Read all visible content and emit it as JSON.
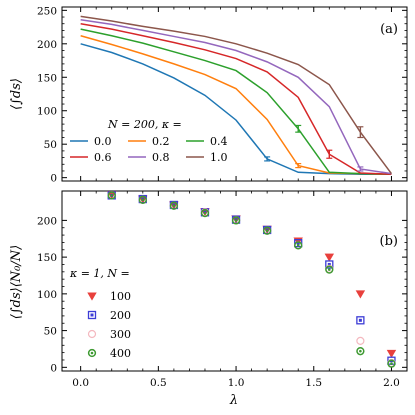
{
  "chart_data": [
    {
      "type": "line",
      "panel_label": "(a)",
      "ylabel": "⟨∫ds⟩",
      "xlabel": "",
      "xlim": [
        -0.12,
        2.1
      ],
      "ylim": [
        -5,
        255
      ],
      "yticks": [
        0,
        50,
        100,
        150,
        200,
        250
      ],
      "xticks": [
        0.0,
        0.5,
        1.0,
        1.5,
        2.0
      ],
      "show_xticklabels": false,
      "legend_title": "N = 200, κ =",
      "legend_position": "lower-left",
      "x": [
        0.0,
        0.2,
        0.4,
        0.6,
        0.8,
        1.0,
        1.2,
        1.4,
        1.6,
        1.8,
        2.0
      ],
      "series": [
        {
          "name": "0.0",
          "color": "#1f77b4",
          "values": [
            200,
            187,
            170,
            149,
            123,
            86,
            28,
            8,
            6,
            5,
            5
          ],
          "error_at": [
            1.2
          ],
          "error": [
            3
          ]
        },
        {
          "name": "0.2",
          "color": "#ff7f0e",
          "values": [
            212,
            199,
            185,
            170,
            154,
            133,
            87,
            18,
            7,
            6,
            5
          ],
          "error_at": [
            1.4
          ],
          "error": [
            3
          ]
        },
        {
          "name": "0.4",
          "color": "#2ca02c",
          "values": [
            222,
            212,
            201,
            188,
            175,
            160,
            127,
            73,
            8,
            6,
            5
          ],
          "error_at": [
            1.4
          ],
          "error": [
            5
          ]
        },
        {
          "name": "0.6",
          "color": "#d62728",
          "values": [
            230,
            222,
            212,
            202,
            191,
            178,
            158,
            120,
            35,
            7,
            5
          ],
          "error_at": [
            1.6
          ],
          "error": [
            6
          ]
        },
        {
          "name": "0.8",
          "color": "#9467bd",
          "values": [
            236,
            229,
            220,
            211,
            202,
            190,
            173,
            150,
            106,
            13,
            6
          ],
          "error_at": [
            1.8
          ],
          "error": [
            3
          ]
        },
        {
          "name": "1.0",
          "color": "#8c564b",
          "values": [
            241,
            234,
            226,
            219,
            211,
            200,
            186,
            169,
            139,
            68,
            6
          ],
          "error_at": [
            1.8
          ],
          "error": [
            8
          ]
        }
      ]
    },
    {
      "type": "scatter",
      "panel_label": "(b)",
      "ylabel": "⟨∫ds⟩⟨N₀/N⟩",
      "xlabel": "λ",
      "xlim": [
        -0.12,
        2.1
      ],
      "ylim": [
        -5,
        240
      ],
      "yticks": [
        0,
        50,
        100,
        150,
        200
      ],
      "xticks": [
        0.0,
        0.5,
        1.0,
        1.5,
        2.0
      ],
      "xticklabels": [
        "0.0",
        "0.5",
        "1.0",
        "1.5",
        "2.0"
      ],
      "legend_title": "κ = 1, N =",
      "legend_position": "lower-left",
      "x": [
        0.2,
        0.4,
        0.6,
        0.8,
        1.0,
        1.2,
        1.4,
        1.6,
        1.8,
        2.0
      ],
      "series": [
        {
          "name": "100",
          "marker": "triangle-down",
          "color": "#e8403c",
          "values": [
            235,
            229,
            221,
            212,
            202,
            188,
            172,
            150,
            100,
            19
          ]
        },
        {
          "name": "200",
          "marker": "square",
          "color": "#3d3dd6",
          "values": [
            234,
            229,
            221,
            211,
            201,
            187,
            169,
            140,
            64,
            9
          ]
        },
        {
          "name": "300",
          "marker": "circle-open",
          "color": "#f4b8bf",
          "values": [
            234,
            228,
            220,
            211,
            200,
            186,
            166,
            134,
            36,
            6
          ]
        },
        {
          "name": "400",
          "marker": "circle",
          "color": "#3e9a32",
          "values": [
            234,
            228,
            220,
            210,
            200,
            186,
            166,
            133,
            22,
            5
          ]
        }
      ]
    }
  ]
}
